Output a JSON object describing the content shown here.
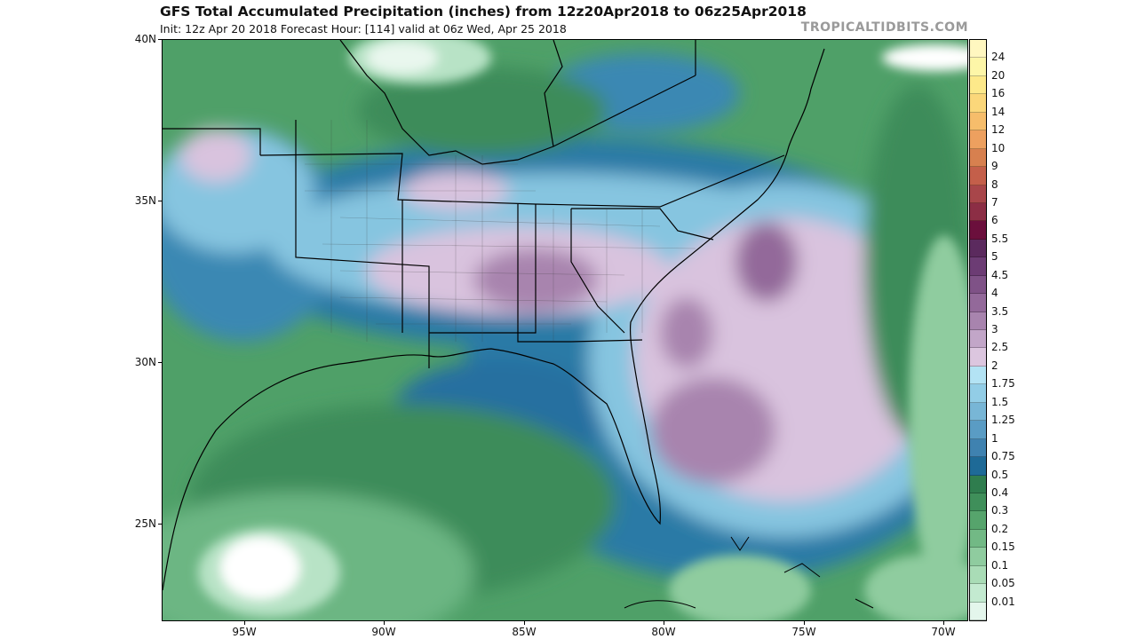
{
  "title": "GFS Total Accumulated Precipitation (inches) from 12z20Apr2018 to 06z25Apr2018",
  "subtitle": "Init: 12z Apr 20 2018   Forecast Hour: [114]   valid at 06z Wed, Apr 25 2018",
  "brand": "TROPICALTIDBITS.COM",
  "axes": {
    "lat_labels": [
      "40N",
      "35N",
      "30N",
      "25N"
    ],
    "lon_labels": [
      "95W",
      "90W",
      "85W",
      "80W",
      "75W",
      "70W"
    ]
  },
  "colorbar": {
    "labels": [
      "24",
      "20",
      "16",
      "14",
      "12",
      "10",
      "9",
      "8",
      "7",
      "6",
      "5.5",
      "5",
      "4.5",
      "4",
      "3.5",
      "3",
      "2.5",
      "2",
      "1.75",
      "1.5",
      "1.25",
      "1",
      "0.75",
      "0.5",
      "0.4",
      "0.3",
      "0.2",
      "0.15",
      "0.1",
      "0.05",
      "0.01"
    ],
    "colors": [
      "#fdf6a8",
      "#fde98a",
      "#fbd77a",
      "#f6bd6b",
      "#eda05f",
      "#d7804f",
      "#c45f4a",
      "#a8464a",
      "#8c2e45",
      "#6b0f3c",
      "#5b2a5e",
      "#6c3c74",
      "#7f5287",
      "#93699a",
      "#a884ae",
      "#c2a6c8",
      "#dcc6df",
      "#b3e3f4",
      "#92cde6",
      "#78b6d6",
      "#5a9cc4",
      "#3f82b0",
      "#1e6a97",
      "#2f7d4e",
      "#3f8f5a",
      "#56a46c",
      "#72b985",
      "#8fcc9f",
      "#a9dcb6",
      "#c3ead0",
      "#e4f6ec"
    ]
  }
}
